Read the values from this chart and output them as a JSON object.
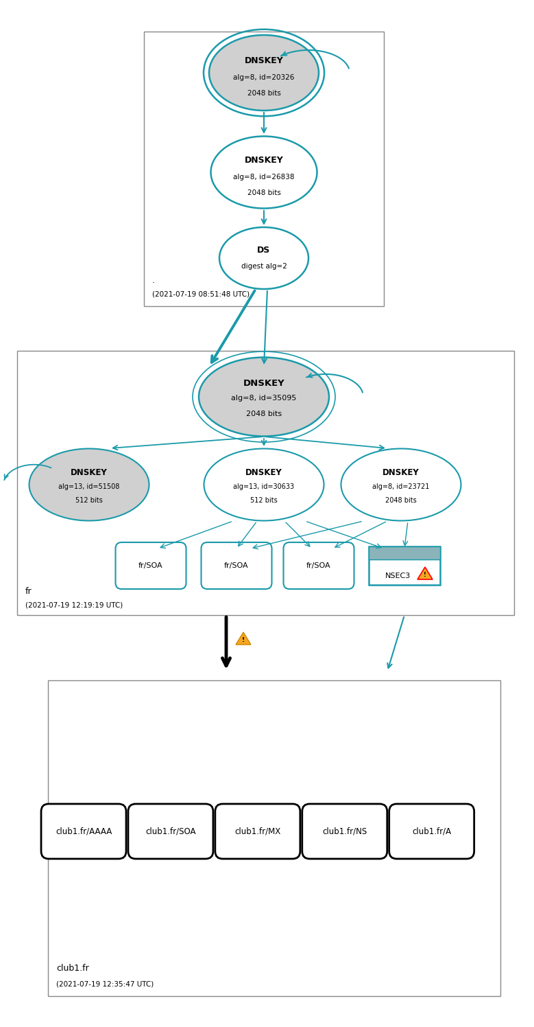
{
  "teal": "#1a9aaa",
  "gray_fill": "#d0d0d0",
  "white_fill": "#ffffff",
  "warn_yellow": "#f5a623",
  "nsec3_fill": "#8ab4ba",
  "border_gray": "#888888",
  "zone1_label": ".",
  "zone1_time": "(2021-07-19 08:51:48 UTC)",
  "zone2_label": "fr",
  "zone2_time": "(2021-07-19 12:19:19 UTC)",
  "zone3_label": "club1.fr",
  "zone3_time": "(2021-07-19 12:35:47 UTC)",
  "zone3_records": [
    "club1.fr/AAAA",
    "club1.fr/SOA",
    "club1.fr/MX",
    "club1.fr/NS",
    "club1.fr/A"
  ]
}
